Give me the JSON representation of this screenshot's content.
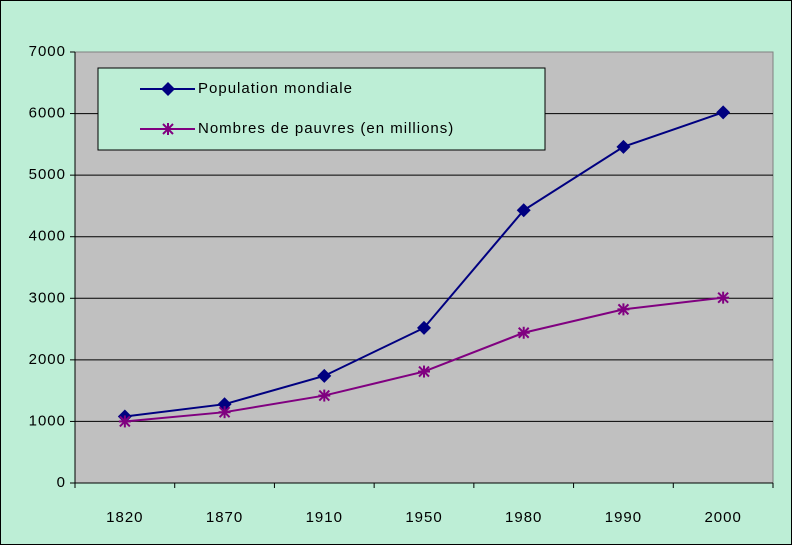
{
  "chart_data": {
    "type": "line",
    "categories": [
      "1820",
      "1870",
      "1910",
      "1950",
      "1980",
      "1990",
      "2000"
    ],
    "series": [
      {
        "name": "Population mondiale",
        "color": "#000080",
        "marker": "diamond",
        "values": [
          1080,
          1280,
          1740,
          2520,
          4430,
          5460,
          6020
        ]
      },
      {
        "name": "Nombres de pauvres (en millions)",
        "color": "#800080",
        "marker": "asterisk",
        "values": [
          1000,
          1150,
          1420,
          1810,
          2440,
          2820,
          3010
        ]
      }
    ],
    "ylim": [
      0,
      7000
    ],
    "yticks": [
      0,
      1000,
      2000,
      3000,
      4000,
      5000,
      6000,
      7000
    ],
    "grid": true,
    "legend": "upper-left"
  }
}
